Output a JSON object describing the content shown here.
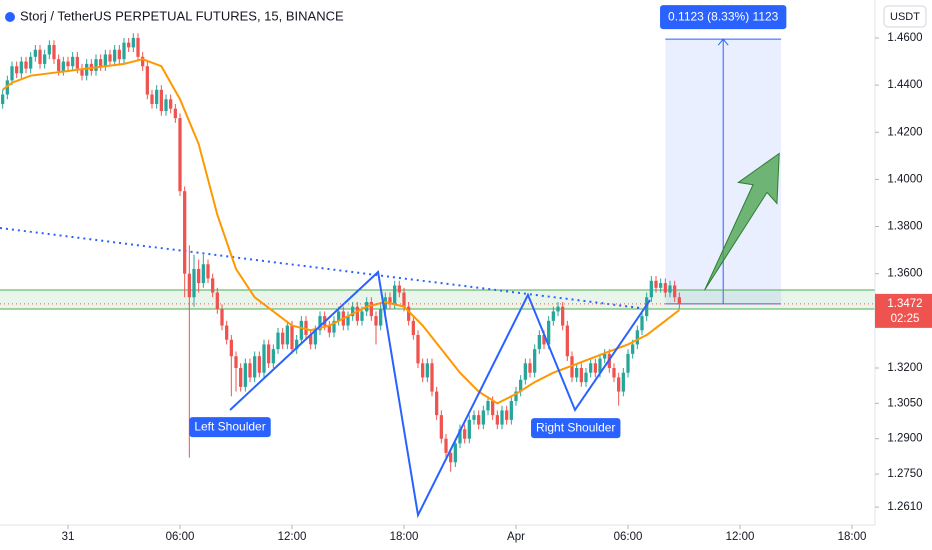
{
  "chart_data": {
    "type": "candlestick",
    "title": "Storj / TetherUS PERPETUAL FUTURES, 15, BINANCE",
    "currency": "USDT",
    "up_color": "#26a69a",
    "down_color": "#ef5350",
    "xlim": [
      -3.643,
      43.232
    ],
    "ylim": [
      1.2534,
      1.4761
    ],
    "grid": false,
    "xticks": [
      {
        "value": 0,
        "label": "31"
      },
      {
        "value": 6,
        "label": "06:00"
      },
      {
        "value": 12,
        "label": "12:00"
      },
      {
        "value": 18,
        "label": "18:00"
      },
      {
        "value": 24,
        "label": "Apr"
      },
      {
        "value": 30,
        "label": "06:00"
      },
      {
        "value": 36,
        "label": "12:00"
      },
      {
        "value": 42,
        "label": "18:00"
      }
    ],
    "yticks": [
      {
        "value": 1.46,
        "label": "1.4600"
      },
      {
        "value": 1.44,
        "label": "1.4400"
      },
      {
        "value": 1.42,
        "label": "1.4200"
      },
      {
        "value": 1.4,
        "label": "1.4000"
      },
      {
        "value": 1.38,
        "label": "1.3800"
      },
      {
        "value": 1.36,
        "label": "1.3600"
      },
      {
        "value": 1.32,
        "label": "1.3200"
      },
      {
        "value": 1.305,
        "label": "1.3050"
      },
      {
        "value": 1.29,
        "label": "1.2900"
      },
      {
        "value": 1.275,
        "label": "1.2750"
      },
      {
        "value": 1.261,
        "label": "1.2610"
      }
    ],
    "x": [
      -3.5,
      -3.25,
      -3,
      -2.75,
      -2.5,
      -2.25,
      -2,
      -1.75,
      -1.5,
      -1.25,
      -1,
      -0.75,
      -0.5,
      -0.25,
      0,
      0.25,
      0.5,
      0.75,
      1,
      1.25,
      1.5,
      1.75,
      2,
      2.25,
      2.5,
      2.75,
      3,
      3.25,
      3.5,
      3.75,
      4,
      4.25,
      4.5,
      4.75,
      5,
      5.25,
      5.5,
      5.75,
      6,
      6.25,
      6.5,
      6.75,
      7,
      7.25,
      7.5,
      7.75,
      8,
      8.25,
      8.5,
      8.75,
      9,
      9.25,
      9.5,
      9.75,
      10,
      10.25,
      10.5,
      10.75,
      11,
      11.25,
      11.5,
      11.75,
      12,
      12.25,
      12.5,
      12.75,
      13,
      13.25,
      13.5,
      13.75,
      14,
      14.25,
      14.5,
      14.75,
      15,
      15.25,
      15.5,
      15.75,
      16,
      16.25,
      16.5,
      16.75,
      17,
      17.25,
      17.5,
      17.75,
      18,
      18.25,
      18.5,
      18.75,
      19,
      19.25,
      19.5,
      19.75,
      20,
      20.25,
      20.5,
      20.75,
      21,
      21.25,
      21.5,
      21.75,
      22,
      22.25,
      22.5,
      22.75,
      23,
      23.25,
      23.5,
      23.75,
      24,
      24.25,
      24.5,
      24.75,
      25,
      25.25,
      25.5,
      25.75,
      26,
      26.25,
      26.5,
      26.75,
      27,
      27.25,
      27.5,
      27.75,
      28,
      28.25,
      28.5,
      28.75,
      29,
      29.25,
      29.5,
      29.75,
      30,
      30.25,
      30.5,
      30.75,
      31,
      31.25,
      31.5,
      31.75,
      32,
      32.25,
      32.5,
      32.75
    ],
    "open": [
      1.432,
      1.436,
      1.442,
      1.448,
      1.445,
      1.45,
      1.447,
      1.452,
      1.455,
      1.449,
      1.453,
      1.457,
      1.451,
      1.446,
      1.45,
      1.448,
      1.452,
      1.447,
      1.444,
      1.449,
      1.446,
      1.451,
      1.448,
      1.453,
      1.45,
      1.455,
      1.451,
      1.458,
      1.456,
      1.46,
      1.452,
      1.448,
      1.436,
      1.432,
      1.438,
      1.429,
      1.434,
      1.43,
      1.426,
      1.395,
      1.36,
      1.35,
      1.362,
      1.356,
      1.364,
      1.358,
      1.352,
      1.345,
      1.338,
      1.332,
      1.325,
      1.32,
      1.312,
      1.322,
      1.316,
      1.325,
      1.318,
      1.33,
      1.322,
      1.328,
      1.335,
      1.33,
      1.338,
      1.328,
      1.332,
      1.34,
      1.334,
      1.33,
      1.336,
      1.342,
      1.338,
      1.335,
      1.34,
      1.344,
      1.338,
      1.342,
      1.346,
      1.34,
      1.344,
      1.348,
      1.342,
      1.338,
      1.345,
      1.35,
      1.347,
      1.355,
      1.352,
      1.346,
      1.34,
      1.334,
      1.322,
      1.316,
      1.322,
      1.31,
      1.3,
      1.29,
      1.284,
      1.28,
      1.288,
      1.294,
      1.29,
      1.298,
      1.3,
      1.296,
      1.302,
      1.306,
      1.3,
      1.296,
      1.302,
      1.298,
      1.306,
      1.31,
      1.315,
      1.322,
      1.318,
      1.328,
      1.334,
      1.33,
      1.34,
      1.344,
      1.346,
      1.338,
      1.325,
      1.316,
      1.32,
      1.314,
      1.318,
      1.322,
      1.318,
      1.324,
      1.326,
      1.32,
      1.316,
      1.31,
      1.318,
      1.326,
      1.33,
      1.336,
      1.342,
      1.35,
      1.357,
      1.354,
      1.356,
      1.352,
      1.355,
      1.35
    ],
    "high": [
      1.438,
      1.444,
      1.45,
      1.45,
      1.452,
      1.452,
      1.454,
      1.457,
      1.457,
      1.455,
      1.459,
      1.459,
      1.453,
      1.452,
      1.452,
      1.454,
      1.454,
      1.449,
      1.451,
      1.451,
      1.453,
      1.453,
      1.455,
      1.455,
      1.457,
      1.457,
      1.46,
      1.46,
      1.462,
      1.462,
      1.454,
      1.45,
      1.438,
      1.44,
      1.44,
      1.436,
      1.436,
      1.432,
      1.428,
      1.397,
      1.372,
      1.368,
      1.366,
      1.368,
      1.366,
      1.36,
      1.354,
      1.347,
      1.34,
      1.334,
      1.327,
      1.322,
      1.324,
      1.324,
      1.327,
      1.327,
      1.332,
      1.332,
      1.33,
      1.337,
      1.337,
      1.34,
      1.34,
      1.334,
      1.342,
      1.342,
      1.336,
      1.338,
      1.344,
      1.344,
      1.34,
      1.342,
      1.346,
      1.346,
      1.344,
      1.348,
      1.348,
      1.346,
      1.35,
      1.35,
      1.344,
      1.347,
      1.352,
      1.352,
      1.357,
      1.357,
      1.354,
      1.348,
      1.342,
      1.336,
      1.324,
      1.324,
      1.324,
      1.312,
      1.302,
      1.292,
      1.286,
      1.29,
      1.296,
      1.296,
      1.3,
      1.302,
      1.302,
      1.304,
      1.308,
      1.308,
      1.302,
      1.304,
      1.304,
      1.308,
      1.312,
      1.317,
      1.324,
      1.324,
      1.33,
      1.336,
      1.336,
      1.342,
      1.346,
      1.348,
      1.348,
      1.34,
      1.327,
      1.322,
      1.322,
      1.32,
      1.324,
      1.324,
      1.326,
      1.328,
      1.328,
      1.322,
      1.318,
      1.32,
      1.328,
      1.332,
      1.338,
      1.344,
      1.352,
      1.359,
      1.359,
      1.358,
      1.358,
      1.357,
      1.357,
      1.352
    ],
    "low": [
      1.43,
      1.434,
      1.44,
      1.443,
      1.443,
      1.445,
      1.445,
      1.45,
      1.447,
      1.447,
      1.451,
      1.449,
      1.444,
      1.444,
      1.446,
      1.446,
      1.445,
      1.442,
      1.442,
      1.444,
      1.444,
      1.446,
      1.446,
      1.448,
      1.448,
      1.449,
      1.449,
      1.454,
      1.454,
      1.45,
      1.446,
      1.434,
      1.43,
      1.43,
      1.427,
      1.427,
      1.428,
      1.424,
      1.393,
      1.35,
      1.282,
      1.346,
      1.352,
      1.354,
      1.356,
      1.35,
      1.343,
      1.336,
      1.33,
      1.308,
      1.31,
      1.31,
      1.31,
      1.314,
      1.314,
      1.316,
      1.316,
      1.32,
      1.32,
      1.326,
      1.328,
      1.328,
      1.326,
      1.326,
      1.33,
      1.332,
      1.328,
      1.328,
      1.334,
      1.336,
      1.333,
      1.333,
      1.338,
      1.336,
      1.336,
      1.34,
      1.338,
      1.338,
      1.342,
      1.34,
      1.33,
      1.336,
      1.343,
      1.345,
      1.345,
      1.35,
      1.344,
      1.338,
      1.332,
      1.32,
      1.314,
      1.314,
      1.308,
      1.298,
      1.288,
      1.282,
      1.276,
      1.278,
      1.286,
      1.288,
      1.288,
      1.296,
      1.294,
      1.294,
      1.3,
      1.298,
      1.294,
      1.294,
      1.296,
      1.296,
      1.304,
      1.308,
      1.313,
      1.316,
      1.316,
      1.326,
      1.328,
      1.328,
      1.338,
      1.342,
      1.336,
      1.323,
      1.314,
      1.314,
      1.312,
      1.312,
      1.316,
      1.316,
      1.316,
      1.322,
      1.318,
      1.314,
      1.304,
      1.308,
      1.316,
      1.324,
      1.328,
      1.334,
      1.34,
      1.348,
      1.352,
      1.352,
      1.35,
      1.35,
      1.348,
      1.3452
    ],
    "close": [
      1.436,
      1.442,
      1.448,
      1.445,
      1.45,
      1.447,
      1.452,
      1.455,
      1.449,
      1.453,
      1.457,
      1.451,
      1.446,
      1.45,
      1.448,
      1.452,
      1.447,
      1.444,
      1.449,
      1.446,
      1.451,
      1.448,
      1.453,
      1.45,
      1.455,
      1.451,
      1.458,
      1.456,
      1.46,
      1.452,
      1.448,
      1.436,
      1.432,
      1.438,
      1.429,
      1.434,
      1.43,
      1.426,
      1.395,
      1.36,
      1.35,
      1.362,
      1.356,
      1.364,
      1.358,
      1.352,
      1.345,
      1.338,
      1.332,
      1.325,
      1.32,
      1.312,
      1.322,
      1.316,
      1.325,
      1.318,
      1.33,
      1.322,
      1.328,
      1.335,
      1.33,
      1.338,
      1.328,
      1.332,
      1.34,
      1.334,
      1.33,
      1.336,
      1.342,
      1.338,
      1.335,
      1.34,
      1.344,
      1.338,
      1.342,
      1.346,
      1.34,
      1.344,
      1.348,
      1.342,
      1.338,
      1.345,
      1.35,
      1.347,
      1.355,
      1.352,
      1.346,
      1.34,
      1.334,
      1.322,
      1.316,
      1.322,
      1.31,
      1.3,
      1.29,
      1.284,
      1.28,
      1.288,
      1.294,
      1.29,
      1.298,
      1.3,
      1.296,
      1.302,
      1.306,
      1.3,
      1.296,
      1.302,
      1.298,
      1.306,
      1.31,
      1.315,
      1.322,
      1.318,
      1.328,
      1.334,
      1.33,
      1.34,
      1.344,
      1.346,
      1.338,
      1.325,
      1.316,
      1.32,
      1.314,
      1.318,
      1.322,
      1.318,
      1.324,
      1.326,
      1.32,
      1.316,
      1.31,
      1.318,
      1.326,
      1.33,
      1.336,
      1.342,
      1.35,
      1.357,
      1.354,
      1.356,
      1.352,
      1.355,
      1.35,
      1.3472
    ],
    "ma": {
      "color": "#ff9800",
      "x": [
        -3.5,
        -3,
        -2,
        -1,
        0,
        1,
        2,
        3,
        4,
        5,
        6,
        7,
        8,
        9,
        10,
        11,
        12,
        13,
        14,
        15,
        16,
        17,
        18,
        19,
        20,
        21,
        22,
        23,
        24,
        25,
        26,
        27,
        28,
        29,
        30,
        31,
        32,
        32.75
      ],
      "values": [
        1.438,
        1.441,
        1.444,
        1.445,
        1.446,
        1.447,
        1.448,
        1.449,
        1.451,
        1.448,
        1.434,
        1.415,
        1.385,
        1.362,
        1.35,
        1.344,
        1.338,
        1.336,
        1.338,
        1.342,
        1.346,
        1.348,
        1.346,
        1.338,
        1.328,
        1.318,
        1.31,
        1.305,
        1.309,
        1.314,
        1.318,
        1.321,
        1.324,
        1.327,
        1.33,
        1.334,
        1.34,
        1.3446
      ]
    },
    "last_price": 1.3472,
    "countdown": "02:25",
    "zone": {
      "color": "#4caf50",
      "values": [
        1.345,
        1.3531
      ]
    },
    "neckline": {
      "color": "#2962ff",
      "x": [
        -3.643,
        30.6
      ],
      "values": [
        1.3794,
        1.3455
      ]
    },
    "pattern": {
      "color": "#2962ff",
      "x": [
        8.68,
        16.61,
        18.75,
        24.64,
        27.16,
        31.18
      ],
      "values": [
        1.3022,
        1.3607,
        1.2576,
        1.351,
        1.3022,
        1.3488
      ]
    },
    "shoulders": [
      {
        "text": "Left Shoulder",
        "x": 8.68,
        "y": 1.2949
      },
      {
        "text": "Right Shoulder",
        "x": 27.2,
        "y": 1.2945
      }
    ],
    "measure": {
      "text": "0.1123 (8.33%) 1123",
      "x": [
        32,
        38.2
      ],
      "values": [
        1.3472,
        1.4595
      ]
    },
    "arrow": {
      "color": "#43a047",
      "x": [
        34.1,
        38.1
      ],
      "values": [
        1.353,
        1.411
      ]
    }
  }
}
